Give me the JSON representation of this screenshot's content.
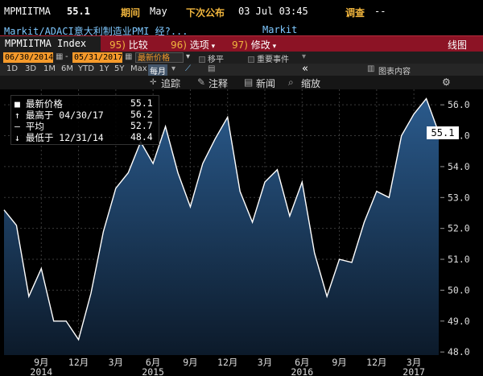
{
  "header": {
    "ticker": "MPMIITMA",
    "last_value": "55.1",
    "period_label": "期间",
    "period_value": "May",
    "next_release_label": "下次公布",
    "next_release_value": "03 Jul 03:45",
    "survey_label": "调查",
    "survey_value": "--"
  },
  "description": {
    "name": "Markit/ADACI意大利制造业PMI 经?...",
    "source": "Markit"
  },
  "toolbar": {
    "index_label": "MPMIITMA Index",
    "compare_num": "95)",
    "compare_label": "比较",
    "options_num": "96)",
    "options_label": "选项",
    "edit_num": "97)",
    "edit_label": "修改",
    "chart_label": "线图"
  },
  "range": {
    "start_date": "06/30/2014",
    "end_date": "05/31/2017",
    "series_select": "最新价格",
    "frequency": "每月",
    "moving_avg": "移平",
    "events": "重要事件",
    "chart_content": "图表内容"
  },
  "periods": [
    "1D",
    "3D",
    "1M",
    "6M",
    "YTD",
    "1Y",
    "5Y",
    "Max"
  ],
  "actions": {
    "track": "追踪",
    "annotate": "注释",
    "news": "新闻",
    "zoom": "缩放"
  },
  "legend": {
    "last_label": "最新价格",
    "last_value": "55.1",
    "high_label": "最高于 04/30/17",
    "high_value": "56.2",
    "avg_label": "平均",
    "avg_value": "52.7",
    "low_label": "最低于 12/31/14",
    "low_value": "48.4"
  },
  "chart_data": {
    "type": "area",
    "x": [
      "2014-06",
      "2014-07",
      "2014-08",
      "2014-09",
      "2014-10",
      "2014-11",
      "2014-12",
      "2015-01",
      "2015-02",
      "2015-03",
      "2015-04",
      "2015-05",
      "2015-06",
      "2015-07",
      "2015-08",
      "2015-09",
      "2015-10",
      "2015-11",
      "2015-12",
      "2016-01",
      "2016-02",
      "2016-03",
      "2016-04",
      "2016-05",
      "2016-06",
      "2016-07",
      "2016-08",
      "2016-09",
      "2016-10",
      "2016-11",
      "2016-12",
      "2017-01",
      "2017-02",
      "2017-03",
      "2017-04",
      "2017-05"
    ],
    "values": [
      52.6,
      52.1,
      49.8,
      50.7,
      49.0,
      49.0,
      48.4,
      49.9,
      51.9,
      53.3,
      53.8,
      54.8,
      54.1,
      55.3,
      53.8,
      52.7,
      54.1,
      54.9,
      55.6,
      53.2,
      52.2,
      53.5,
      53.9,
      52.4,
      53.5,
      51.2,
      49.8,
      51.0,
      50.9,
      52.2,
      53.2,
      53.0,
      55.0,
      55.7,
      56.2,
      55.1
    ],
    "y_ticks": [
      48.0,
      49.0,
      50.0,
      51.0,
      52.0,
      53.0,
      54.0,
      55.0,
      56.0
    ],
    "ylim": [
      47.9,
      56.5
    ],
    "x_ticks": [
      {
        "label": "9月",
        "year": "2014",
        "index": 3
      },
      {
        "label": "12月",
        "year": "",
        "index": 6
      },
      {
        "label": "3月",
        "year": "",
        "index": 9
      },
      {
        "label": "6月",
        "year": "2015",
        "index": 12
      },
      {
        "label": "9月",
        "year": "",
        "index": 15
      },
      {
        "label": "12月",
        "year": "",
        "index": 18
      },
      {
        "label": "3月",
        "year": "",
        "index": 21
      },
      {
        "label": "6月",
        "year": "2016",
        "index": 24
      },
      {
        "label": "9月",
        "year": "",
        "index": 27
      },
      {
        "label": "12月",
        "year": "",
        "index": 30
      },
      {
        "label": "3月",
        "year": "2017",
        "index": 33
      }
    ],
    "grid": true,
    "last_tag": "55.1"
  },
  "colors": {
    "accent_red": "#8c1325",
    "orange": "#f59a2b",
    "label_yellow": "#f0b53d",
    "area_top": "#2a5a8c",
    "area_bottom": "#0c1a2a"
  }
}
